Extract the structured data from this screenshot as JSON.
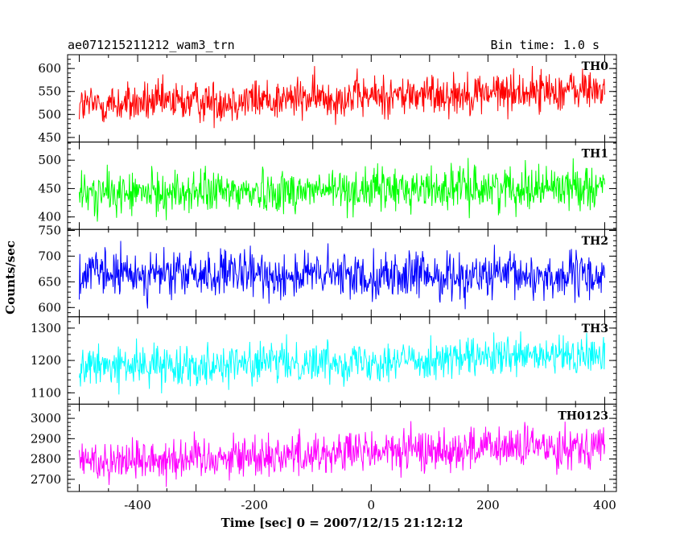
{
  "header": {
    "title": "ae071215211212_wam3_trn",
    "bin_time": "Bin time: 1.0 s"
  },
  "chart_data": {
    "type": "line",
    "xlabel": "Time [sec] 0 = 2007/12/15 21:12:12",
    "ylabel": "Counts/sec",
    "xlim": [
      -520,
      420
    ],
    "xticks": [
      -400,
      -200,
      0,
      200,
      400
    ],
    "x_sample_range": [
      -500,
      400
    ],
    "grid": false,
    "series": [
      {
        "name": "TH0",
        "color": "#ff0000",
        "ylim": [
          440,
          630
        ],
        "yticks": [
          450,
          500,
          550,
          600
        ],
        "approx_start": 520,
        "approx_end": 555,
        "approx_amplitude": 30
      },
      {
        "name": "TH1",
        "color": "#00ff00",
        "ylim": [
          378,
          532
        ],
        "yticks": [
          400,
          450,
          500
        ],
        "approx_start": 440,
        "approx_end": 455,
        "approx_amplitude": 25
      },
      {
        "name": "TH2",
        "color": "#0000ff",
        "ylim": [
          582,
          752
        ],
        "yticks": [
          600,
          650,
          700,
          750
        ],
        "approx_start": 665,
        "approx_end": 660,
        "approx_amplitude": 30
      },
      {
        "name": "TH3",
        "color": "#00ffff",
        "ylim": [
          1065,
          1335
        ],
        "yticks": [
          1100,
          1200,
          1300
        ],
        "approx_start": 1180,
        "approx_end": 1215,
        "approx_amplitude": 40
      },
      {
        "name": "TH0123",
        "color": "#ff00ff",
        "ylim": [
          2640,
          3070
        ],
        "yticks": [
          2700,
          2800,
          2900,
          3000
        ],
        "approx_start": 2790,
        "approx_end": 2870,
        "approx_amplitude": 70
      }
    ]
  }
}
